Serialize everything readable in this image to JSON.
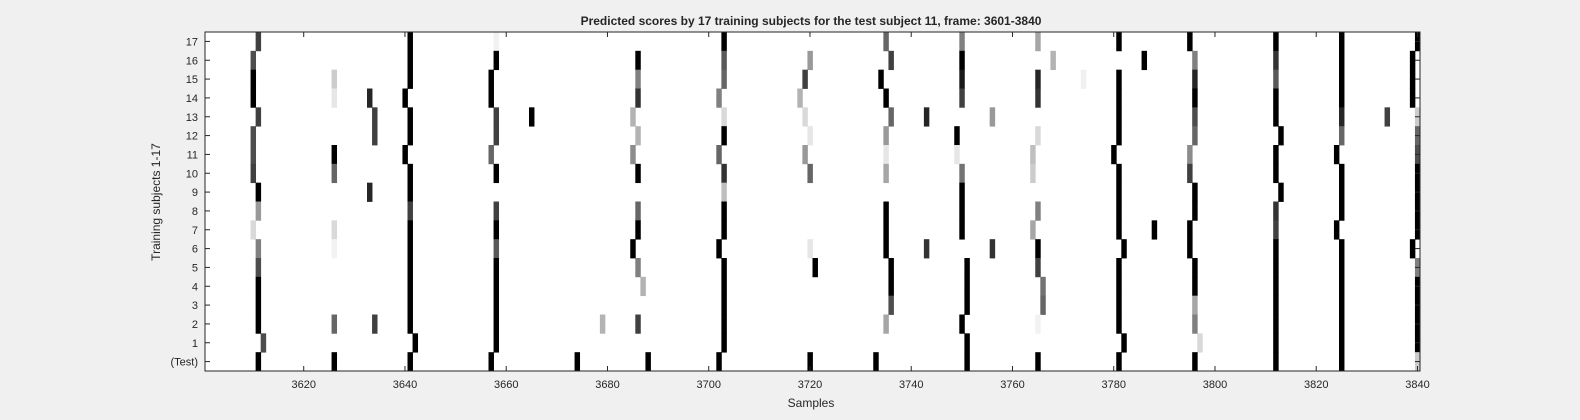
{
  "chart_data": {
    "type": "heatmap",
    "title": "Predicted scores by 17 training subjects for the test subject 11, frame: 3601-3840",
    "xlabel": "Samples",
    "ylabel": "Training subjects 1-17",
    "xlim": [
      3601,
      3840
    ],
    "x_ticks": [
      "3620",
      "3640",
      "3660",
      "3680",
      "3700",
      "3720",
      "3740",
      "3760",
      "3780",
      "3800",
      "3820",
      "3840"
    ],
    "y_ticks": [
      "17",
      "16",
      "15",
      "14",
      "13",
      "12",
      "11",
      "10",
      "9",
      "8",
      "7",
      "6",
      "5",
      "4",
      "3",
      "2",
      "1",
      "(Test)"
    ],
    "colormap": "gray (white = low score, black = high score)",
    "background_value": 0,
    "grid": false,
    "rows": [
      {
        "label": "17",
        "cells": [
          [
            3611,
            0.75
          ],
          [
            3641,
            1
          ],
          [
            3658,
            0.05
          ],
          [
            3703,
            1
          ],
          [
            3735,
            0.6
          ],
          [
            3750,
            0.5
          ],
          [
            3765,
            0.35
          ],
          [
            3781,
            1
          ],
          [
            3795,
            1
          ],
          [
            3812,
            1
          ],
          [
            3825,
            1
          ],
          [
            3840,
            1
          ]
        ]
      },
      {
        "label": "16",
        "cells": [
          [
            3610,
            0.7
          ],
          [
            3641,
            1
          ],
          [
            3658,
            1
          ],
          [
            3686,
            1
          ],
          [
            3703,
            0.65
          ],
          [
            3720,
            0.4
          ],
          [
            3736,
            0.75
          ],
          [
            3750,
            1
          ],
          [
            3768,
            0.3
          ],
          [
            3786,
            1
          ],
          [
            3796,
            0.5
          ],
          [
            3812,
            0.8
          ],
          [
            3825,
            1
          ],
          [
            3839,
            1
          ]
        ]
      },
      {
        "label": "15",
        "cells": [
          [
            3610,
            1
          ],
          [
            3626,
            0.2
          ],
          [
            3641,
            1
          ],
          [
            3657,
            1
          ],
          [
            3686,
            0.5
          ],
          [
            3703,
            0.6
          ],
          [
            3719,
            0.75
          ],
          [
            3734,
            1
          ],
          [
            3750,
            0.9
          ],
          [
            3765,
            0.85
          ],
          [
            3774,
            0.06
          ],
          [
            3781,
            1
          ],
          [
            3796,
            0.85
          ],
          [
            3812,
            0.65
          ],
          [
            3825,
            1
          ],
          [
            3839,
            1
          ]
        ]
      },
      {
        "label": "14",
        "cells": [
          [
            3610,
            1
          ],
          [
            3626,
            0.1
          ],
          [
            3633,
            0.85
          ],
          [
            3640,
            1
          ],
          [
            3657,
            1
          ],
          [
            3686,
            0.8
          ],
          [
            3702,
            0.5
          ],
          [
            3718,
            0.3
          ],
          [
            3735,
            1
          ],
          [
            3750,
            0.75
          ],
          [
            3765,
            0.8
          ],
          [
            3781,
            1
          ],
          [
            3796,
            1
          ],
          [
            3812,
            1
          ],
          [
            3825,
            1
          ],
          [
            3839,
            1
          ]
        ]
      },
      {
        "label": "13",
        "cells": [
          [
            3611,
            0.75
          ],
          [
            3634,
            0.75
          ],
          [
            3641,
            1
          ],
          [
            3658,
            0.75
          ],
          [
            3665,
            1
          ],
          [
            3685,
            0.3
          ],
          [
            3703,
            0.15
          ],
          [
            3719,
            0.15
          ],
          [
            3736,
            0.6
          ],
          [
            3743,
            0.85
          ],
          [
            3756,
            0.4
          ],
          [
            3781,
            1
          ],
          [
            3796,
            0.7
          ],
          [
            3812,
            1
          ],
          [
            3825,
            0.85
          ],
          [
            3834,
            0.75
          ],
          [
            3840,
            0.2
          ]
        ]
      },
      {
        "label": "12",
        "cells": [
          [
            3610,
            0.7
          ],
          [
            3634,
            0.75
          ],
          [
            3641,
            1
          ],
          [
            3658,
            0.75
          ],
          [
            3686,
            0.3
          ],
          [
            3703,
            1
          ],
          [
            3720,
            0.1
          ],
          [
            3735,
            0.4
          ],
          [
            3749,
            1
          ],
          [
            3765,
            0.15
          ],
          [
            3781,
            1
          ],
          [
            3796,
            0.6
          ],
          [
            3813,
            1
          ],
          [
            3825,
            0.6
          ],
          [
            3840,
            0.6
          ]
        ]
      },
      {
        "label": "11",
        "cells": [
          [
            3610,
            0.7
          ],
          [
            3626,
            1
          ],
          [
            3640,
            1
          ],
          [
            3657,
            0.6
          ],
          [
            3685,
            0.45
          ],
          [
            3702,
            0.6
          ],
          [
            3719,
            0.4
          ],
          [
            3735,
            0.1
          ],
          [
            3749,
            0.1
          ],
          [
            3764,
            0.25
          ],
          [
            3780,
            1
          ],
          [
            3795,
            0.45
          ],
          [
            3812,
            1
          ],
          [
            3824,
            1
          ],
          [
            3840,
            0.7
          ]
        ]
      },
      {
        "label": "10",
        "cells": [
          [
            3610,
            0.75
          ],
          [
            3626,
            0.6
          ],
          [
            3641,
            1
          ],
          [
            3658,
            1
          ],
          [
            3686,
            1
          ],
          [
            3703,
            0.8
          ],
          [
            3720,
            0.6
          ],
          [
            3735,
            0.35
          ],
          [
            3750,
            0.55
          ],
          [
            3764,
            0.2
          ],
          [
            3781,
            1
          ],
          [
            3795,
            0.75
          ],
          [
            3812,
            1
          ],
          [
            3825,
            1
          ],
          [
            3840,
            1
          ]
        ]
      },
      {
        "label": "9",
        "cells": [
          [
            3611,
            1
          ],
          [
            3633,
            0.85
          ],
          [
            3641,
            1
          ],
          [
            3703,
            0.25
          ],
          [
            3750,
            1
          ],
          [
            3781,
            1
          ],
          [
            3796,
            1
          ],
          [
            3813,
            1
          ],
          [
            3825,
            1
          ],
          [
            3840,
            1
          ]
        ]
      },
      {
        "label": "8",
        "cells": [
          [
            3611,
            0.4
          ],
          [
            3641,
            0.75
          ],
          [
            3658,
            0.75
          ],
          [
            3686,
            0.6
          ],
          [
            3703,
            1
          ],
          [
            3735,
            1
          ],
          [
            3750,
            1
          ],
          [
            3765,
            0.5
          ],
          [
            3781,
            1
          ],
          [
            3796,
            1
          ],
          [
            3812,
            0.8
          ],
          [
            3825,
            1
          ],
          [
            3840,
            1
          ]
        ]
      },
      {
        "label": "7",
        "cells": [
          [
            3610,
            0.15
          ],
          [
            3626,
            0.15
          ],
          [
            3641,
            1
          ],
          [
            3658,
            1
          ],
          [
            3686,
            1
          ],
          [
            3703,
            1
          ],
          [
            3735,
            1
          ],
          [
            3750,
            1
          ],
          [
            3764,
            0.35
          ],
          [
            3781,
            1
          ],
          [
            3788,
            1
          ],
          [
            3795,
            1
          ],
          [
            3812,
            0.75
          ],
          [
            3824,
            1
          ],
          [
            3840,
            1
          ]
        ]
      },
      {
        "label": "6",
        "cells": [
          [
            3611,
            0.5
          ],
          [
            3626,
            0.05
          ],
          [
            3641,
            1
          ],
          [
            3658,
            0.65
          ],
          [
            3685,
            1
          ],
          [
            3702,
            1
          ],
          [
            3720,
            0.1
          ],
          [
            3735,
            1
          ],
          [
            3743,
            0.8
          ],
          [
            3756,
            0.8
          ],
          [
            3765,
            1
          ],
          [
            3782,
            1
          ],
          [
            3795,
            1
          ],
          [
            3812,
            1
          ],
          [
            3825,
            1
          ],
          [
            3839,
            1
          ]
        ]
      },
      {
        "label": "5",
        "cells": [
          [
            3611,
            0.7
          ],
          [
            3641,
            1
          ],
          [
            3658,
            1
          ],
          [
            3686,
            0.5
          ],
          [
            3703,
            1
          ],
          [
            3721,
            1
          ],
          [
            3736,
            1
          ],
          [
            3751,
            1
          ],
          [
            3765,
            0.75
          ],
          [
            3781,
            1
          ],
          [
            3796,
            1
          ],
          [
            3812,
            1
          ],
          [
            3825,
            1
          ],
          [
            3840,
            0.5
          ]
        ]
      },
      {
        "label": "4",
        "cells": [
          [
            3611,
            1
          ],
          [
            3641,
            1
          ],
          [
            3658,
            1
          ],
          [
            3687,
            0.3
          ],
          [
            3703,
            1
          ],
          [
            3736,
            1
          ],
          [
            3751,
            1
          ],
          [
            3766,
            0.55
          ],
          [
            3781,
            1
          ],
          [
            3796,
            1
          ],
          [
            3812,
            1
          ],
          [
            3825,
            1
          ],
          [
            3840,
            1
          ]
        ]
      },
      {
        "label": "3",
        "cells": [
          [
            3611,
            1
          ],
          [
            3641,
            1
          ],
          [
            3658,
            1
          ],
          [
            3703,
            1
          ],
          [
            3736,
            0.7
          ],
          [
            3751,
            1
          ],
          [
            3766,
            0.6
          ],
          [
            3781,
            1
          ],
          [
            3796,
            0.35
          ],
          [
            3812,
            1
          ],
          [
            3825,
            1
          ],
          [
            3840,
            1
          ]
        ]
      },
      {
        "label": "2",
        "cells": [
          [
            3611,
            1
          ],
          [
            3626,
            0.6
          ],
          [
            3634,
            0.75
          ],
          [
            3641,
            1
          ],
          [
            3658,
            1
          ],
          [
            3679,
            0.3
          ],
          [
            3686,
            0.75
          ],
          [
            3703,
            1
          ],
          [
            3735,
            0.35
          ],
          [
            3750,
            1
          ],
          [
            3765,
            0.05
          ],
          [
            3781,
            1
          ],
          [
            3796,
            0.5
          ],
          [
            3812,
            1
          ],
          [
            3825,
            1
          ],
          [
            3840,
            1
          ]
        ]
      },
      {
        "label": "1",
        "cells": [
          [
            3612,
            0.7
          ],
          [
            3642,
            1
          ],
          [
            3658,
            1
          ],
          [
            3703,
            1
          ],
          [
            3751,
            1
          ],
          [
            3782,
            1
          ],
          [
            3797,
            0.15
          ],
          [
            3812,
            1
          ],
          [
            3825,
            1
          ],
          [
            3840,
            1
          ]
        ]
      },
      {
        "label": "(Test)",
        "cells": [
          [
            3611,
            1
          ],
          [
            3626,
            1
          ],
          [
            3641,
            1
          ],
          [
            3657,
            1
          ],
          [
            3674,
            1
          ],
          [
            3688,
            1
          ],
          [
            3702,
            1
          ],
          [
            3720,
            1
          ],
          [
            3733,
            1
          ],
          [
            3751,
            1
          ],
          [
            3765,
            1
          ],
          [
            3781,
            1
          ],
          [
            3796,
            1
          ],
          [
            3812,
            1
          ],
          [
            3825,
            1
          ],
          [
            3840,
            0.2
          ]
        ]
      }
    ]
  }
}
